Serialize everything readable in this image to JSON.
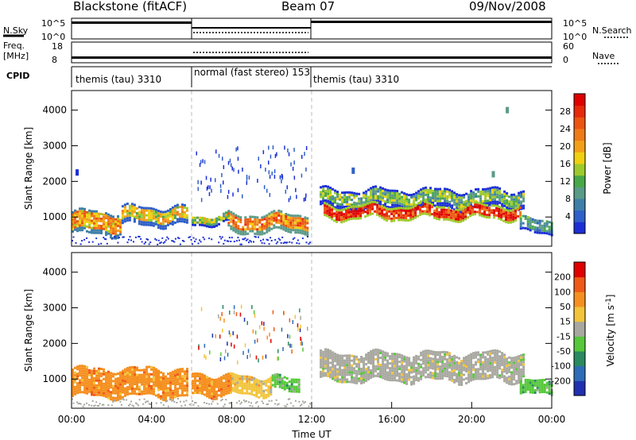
{
  "header": {
    "station": "Blackstone (fitACF)",
    "beam": "Beam 07",
    "date": "09/Nov/2008"
  },
  "aux_panels": {
    "nsky_label": "N.Sky",
    "nsky_ticks": [
      "10^5",
      "10^0"
    ],
    "nsearch_label": "N.Search",
    "nsearch_ticks": [
      "10^5",
      "10^0"
    ],
    "freq_label_1": "Freq.",
    "freq_label_2": "[MHz]",
    "freq_ticks": [
      "18",
      "8"
    ],
    "nave_label": "Nave",
    "nave_ticks": [
      "60",
      "0"
    ],
    "cpid_label": "CPID",
    "cpid_segments": [
      {
        "label": "themis (tau) 3310",
        "start_h": 0,
        "end_h": 6
      },
      {
        "label": "normal (fast stereo) 153",
        "start_h": 6,
        "end_h": 12
      },
      {
        "label": "themis (tau) 3310",
        "start_h": 12,
        "end_h": 24
      }
    ]
  },
  "chart_data": [
    {
      "type": "heatmap",
      "quantity": "Power",
      "ylabel": "Slant Range [km]",
      "ylim": [
        180,
        4550
      ],
      "y_ticks": [
        1000,
        2000,
        3000,
        4000
      ],
      "xlim": [
        0,
        24
      ],
      "grid": false,
      "colorbar": {
        "label": "Power [dB]",
        "tick_labels": [
          "4",
          "8",
          "12",
          "16",
          "20",
          "24",
          "28"
        ],
        "colors": [
          "#1c2fd6",
          "#2f5fc8",
          "#3f7fa8",
          "#5a9a88",
          "#48a848",
          "#9ecb2c",
          "#f0d010",
          "#f2a018",
          "#ee7a18",
          "#ec5510",
          "#e62a0a",
          "#e00000"
        ]
      },
      "bands": [
        {
          "x_start": 0.0,
          "x_end": 2.5,
          "range_low": 560,
          "range_high": 1220,
          "level": 20
        },
        {
          "x_start": 2.5,
          "x_end": 5.8,
          "range_low": 820,
          "range_high": 1330,
          "level": 18
        },
        {
          "x_start": 6.0,
          "x_end": 7.8,
          "range_low": 850,
          "range_high": 1100,
          "level": 14
        },
        {
          "x_start": 7.8,
          "x_end": 11.8,
          "range_low": 620,
          "range_high": 1150,
          "level": 22
        },
        {
          "x_start": 12.4,
          "x_end": 22.6,
          "range_low": 1300,
          "range_high": 1800,
          "level": 12
        },
        {
          "x_start": 12.6,
          "x_end": 22.4,
          "range_low": 1000,
          "range_high": 1350,
          "level": 26
        },
        {
          "x_start": 22.4,
          "x_end": 24.0,
          "range_low": 600,
          "range_high": 1000,
          "level": 10
        }
      ],
      "isolated_echoes": [
        {
          "x": 0.2,
          "range": 2250,
          "level": 6
        },
        {
          "x": 14.0,
          "range": 2300,
          "level": 8
        },
        {
          "x": 21.0,
          "range": 2200,
          "level": 8
        },
        {
          "x": 21.7,
          "range": 4000,
          "level": 6
        }
      ],
      "ground_scatter_row": {
        "x_start": 0,
        "x_end": 12,
        "range": 250
      }
    },
    {
      "type": "heatmap",
      "quantity": "Velocity",
      "ylabel": "Slant Range [km]",
      "xlabel": "Time UT",
      "ylim": [
        180,
        4550
      ],
      "y_ticks": [
        1000,
        2000,
        3000,
        4000
      ],
      "xlim": [
        0,
        24
      ],
      "x_ticks": [
        "00:00",
        "04:00",
        "08:00",
        "12:00",
        "16:00",
        "20:00",
        "00:00"
      ],
      "grid": false,
      "colorbar": {
        "label": "Velocity [m s^-1]",
        "tick_labels": [
          "200",
          "100",
          "50",
          "15",
          "-15",
          "-50",
          "-100",
          "-200"
        ],
        "colors": [
          "#2030b0",
          "#2e6cb8",
          "#2b8a60",
          "#56c83a",
          "#a8a8a0",
          "#f2c43a",
          "#f59020",
          "#f05a18",
          "#e00000"
        ]
      },
      "bands": [
        {
          "x_start": 0.0,
          "x_end": 5.8,
          "range_low": 560,
          "range_high": 1350,
          "color_index": 6
        },
        {
          "x_start": 6.0,
          "x_end": 8.0,
          "range_low": 600,
          "range_high": 1150,
          "color_index": 6
        },
        {
          "x_start": 8.0,
          "x_end": 10.0,
          "range_low": 620,
          "range_high": 1150,
          "color_index": 5
        },
        {
          "x_start": 10.0,
          "x_end": 11.4,
          "range_low": 700,
          "range_high": 1100,
          "color_index": 3
        },
        {
          "x_start": 12.4,
          "x_end": 22.6,
          "range_low": 1000,
          "range_high": 1800,
          "color_index": 4
        },
        {
          "x_start": 22.4,
          "x_end": 24.0,
          "range_low": 600,
          "range_high": 1000,
          "color_index": 3
        }
      ],
      "ground_scatter_row": {
        "x_start": 0,
        "x_end": 12,
        "range": 250
      }
    }
  ]
}
